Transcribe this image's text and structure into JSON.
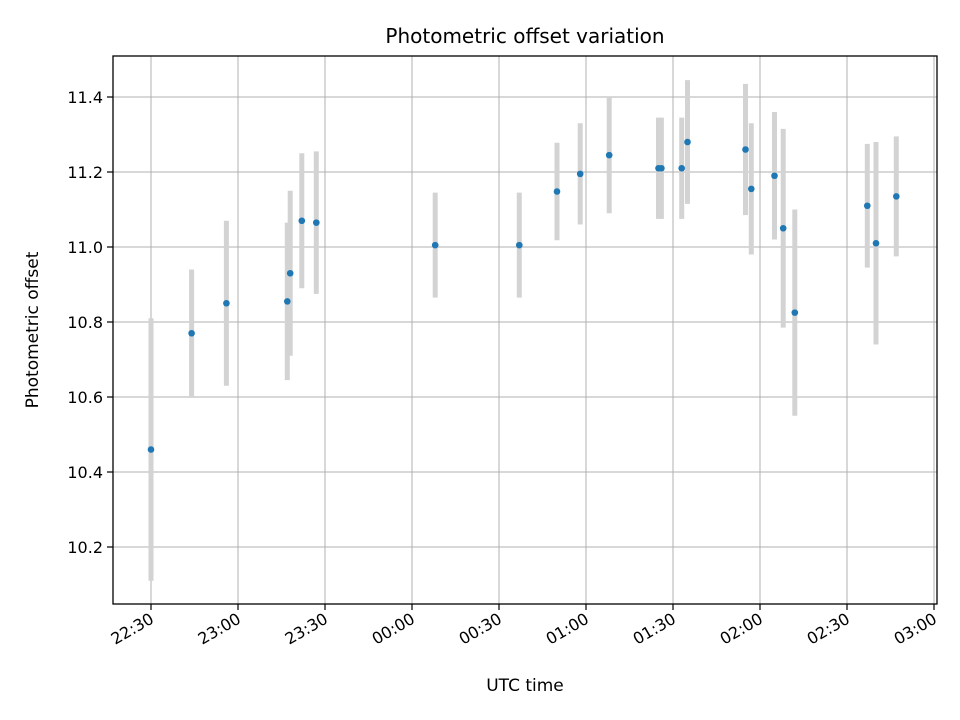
{
  "chart_data": {
    "type": "scatter",
    "title": "Photometric offset variation",
    "xlabel": "UTC time",
    "ylabel": "Photometric offset",
    "x_ticks": [
      "22:30",
      "23:00",
      "23:30",
      "00:00",
      "00:30",
      "01:00",
      "01:30",
      "02:00",
      "02:30",
      "03:00"
    ],
    "y_ticks": [
      "10.2",
      "10.4",
      "10.6",
      "10.8",
      "11.0",
      "11.2",
      "11.4"
    ],
    "ylim": [
      10.05,
      11.52
    ],
    "grid": true,
    "marker_color": "#1f77b4",
    "errorbar_color": "#d3d3d3",
    "points": [
      {
        "time": "22:30",
        "y": 10.46,
        "err": 0.35
      },
      {
        "time": "22:44",
        "y": 10.77,
        "err": 0.17
      },
      {
        "time": "22:56",
        "y": 10.85,
        "err": 0.22
      },
      {
        "time": "23:17",
        "y": 10.855,
        "err": 0.21
      },
      {
        "time": "23:18",
        "y": 10.93,
        "err": 0.22
      },
      {
        "time": "23:22",
        "y": 11.07,
        "err": 0.18
      },
      {
        "time": "23:27",
        "y": 11.065,
        "err": 0.19
      },
      {
        "time": "00:08",
        "y": 11.005,
        "err": 0.14
      },
      {
        "time": "00:37",
        "y": 11.005,
        "err": 0.14
      },
      {
        "time": "00:50",
        "y": 11.148,
        "err": 0.13
      },
      {
        "time": "00:58",
        "y": 11.195,
        "err": 0.135
      },
      {
        "time": "01:08",
        "y": 11.245,
        "err": 0.155
      },
      {
        "time": "01:25",
        "y": 11.21,
        "err": 0.135
      },
      {
        "time": "01:26",
        "y": 11.21,
        "err": 0.135
      },
      {
        "time": "01:33",
        "y": 11.21,
        "err": 0.135
      },
      {
        "time": "01:35",
        "y": 11.28,
        "err": 0.165
      },
      {
        "time": "01:55",
        "y": 11.26,
        "err": 0.175
      },
      {
        "time": "01:57",
        "y": 11.155,
        "err": 0.175
      },
      {
        "time": "02:05",
        "y": 11.19,
        "err": 0.17
      },
      {
        "time": "02:08",
        "y": 11.05,
        "err": 0.265
      },
      {
        "time": "02:12",
        "y": 10.825,
        "err": 0.275
      },
      {
        "time": "02:37",
        "y": 11.11,
        "err": 0.165
      },
      {
        "time": "02:40",
        "y": 11.01,
        "err": 0.27
      },
      {
        "time": "02:47",
        "y": 11.135,
        "err": 0.16
      }
    ]
  }
}
